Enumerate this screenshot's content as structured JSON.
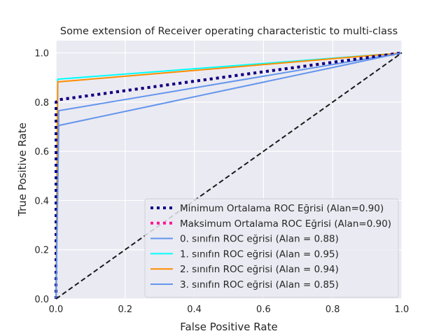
{
  "chart_data": {
    "type": "line",
    "title": "Some extension of Receiver operating characteristic to multi-class",
    "xlabel": "False Positive Rate",
    "ylabel": "True Positive Rate",
    "xlim": [
      0.0,
      1.0
    ],
    "ylim": [
      0.0,
      1.05
    ],
    "xticks": [
      "0.0",
      "0.2",
      "0.4",
      "0.6",
      "0.8",
      "1.0"
    ],
    "yticks": [
      "0.0",
      "0.2",
      "0.4",
      "0.6",
      "0.8",
      "1.0"
    ],
    "grid": true,
    "background": "#eaeaf2",
    "legend_position": "lower-right",
    "series": [
      {
        "name": "Minimum Ortalama ROC Eğrisi (Alan=0.90)",
        "color": "#000080",
        "style": "dotted",
        "width": 4,
        "x": [
          0.0,
          0.0,
          0.01,
          1.0
        ],
        "y": [
          0.0,
          0.8,
          0.81,
          1.0
        ]
      },
      {
        "name": "Maksimum Ortalama ROC Eğrisi (Alan=0.90)",
        "color": "#ff1493",
        "style": "dotted",
        "width": 4,
        "x": [
          0.0,
          0.0,
          0.01,
          1.0
        ],
        "y": [
          0.0,
          0.8,
          0.81,
          1.0
        ]
      },
      {
        "name": "0. sınıfın ROC eğrisi (Alan = 0.88)",
        "color": "#6495ed",
        "style": "solid",
        "width": 2,
        "x": [
          0.0,
          0.008,
          1.0
        ],
        "y": [
          0.0,
          0.765,
          1.0
        ]
      },
      {
        "name": "1. sınıfın ROC eğrisi (Alan = 0.95)",
        "color": "#00ffff",
        "style": "solid",
        "width": 2,
        "x": [
          0.0,
          0.005,
          1.0
        ],
        "y": [
          0.0,
          0.893,
          1.0
        ]
      },
      {
        "name": "2. sınıfın ROC eğrisi (Alan = 0.94)",
        "color": "#ff8c00",
        "style": "solid",
        "width": 2,
        "x": [
          0.0,
          0.005,
          1.0
        ],
        "y": [
          0.0,
          0.882,
          1.0
        ]
      },
      {
        "name": "3. sınıfın ROC eğrisi (Alan = 0.85)",
        "color": "#6495ed",
        "style": "solid",
        "width": 2,
        "x": [
          0.0,
          0.008,
          1.0
        ],
        "y": [
          0.0,
          0.705,
          1.0
        ]
      }
    ],
    "reference_line": {
      "color": "#1a1a1a",
      "style": "dashed",
      "x": [
        0.0,
        1.0
      ],
      "y": [
        0.0,
        1.0
      ]
    }
  }
}
